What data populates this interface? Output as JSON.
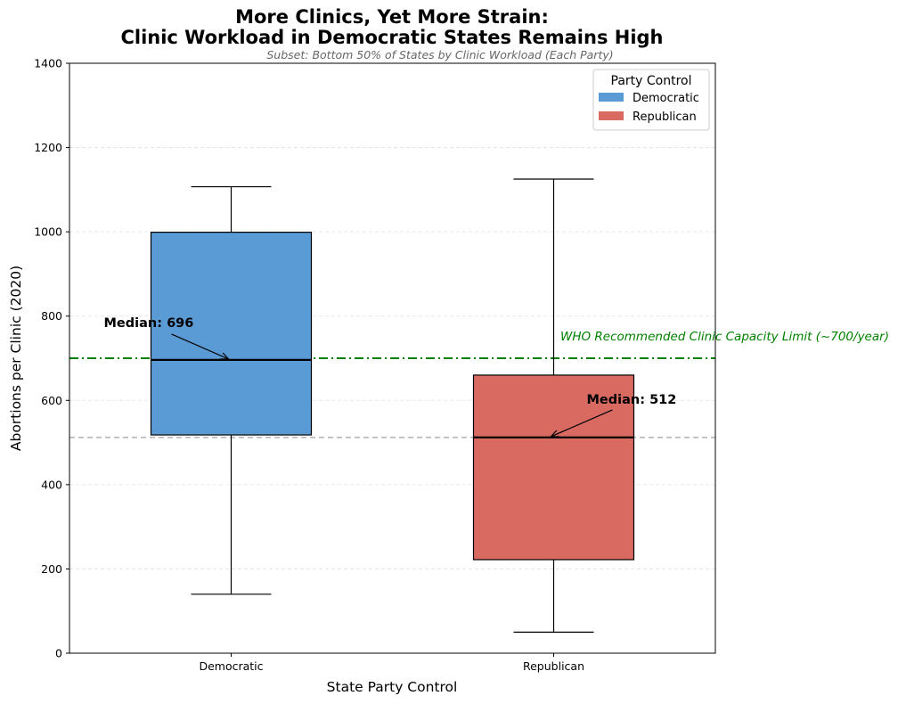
{
  "chart_data": {
    "type": "box",
    "title_line1": "More Clinics, Yet More Strain:",
    "title_line2": "Clinic Workload in Democratic States Remains High",
    "subtitle": "Subset: Bottom 50% of States by Clinic Workload (Each Party)",
    "xlabel": "State Party Control",
    "ylabel": "Abortions per Clinic (2020)",
    "ylim": [
      0,
      1400
    ],
    "yticks": [
      0,
      200,
      400,
      600,
      800,
      1000,
      1200,
      1400
    ],
    "categories": [
      "Democratic",
      "Republican"
    ],
    "boxes": [
      {
        "name": "Democratic",
        "whisker_low": 140,
        "q1": 518,
        "median": 696,
        "q3": 999,
        "whisker_high": 1107,
        "color": "#5b9bd5",
        "median_label": "Median: 696"
      },
      {
        "name": "Republican",
        "whisker_low": 50,
        "q1": 222,
        "median": 512,
        "q3": 660,
        "whisker_high": 1125,
        "color": "#d86a62",
        "median_label": "Median: 512"
      }
    ],
    "reference_lines": [
      {
        "value": 700,
        "style": "dash-dot",
        "color": "#008000",
        "label": "WHO Recommended Clinic Capacity Limit (~700/year)"
      },
      {
        "value": 512,
        "style": "dashed",
        "color": "#b0b0b0",
        "label": ""
      }
    ],
    "grid": "y-dashed",
    "legend": {
      "title": "Party Control",
      "placement": "top-right",
      "entries": [
        {
          "label": "Democratic",
          "color": "#5b9bd5"
        },
        {
          "label": "Republican",
          "color": "#d86a62"
        }
      ]
    }
  }
}
